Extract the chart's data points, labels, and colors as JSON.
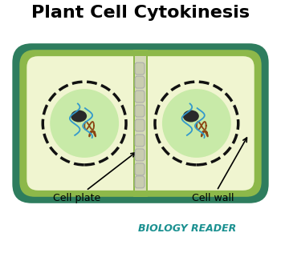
{
  "title": "Plant Cell Cytokinesis",
  "title_fontsize": 16,
  "title_fontweight": "bold",
  "bg_color": "#ffffff",
  "outer_cell_color": "#2e7d5e",
  "inner_cell_color": "#8db84a",
  "cytoplasm_color": "#f0f5d0",
  "nucleus_inner_color": "#c8eaa8",
  "nucleolus_color": "#2a2a2a",
  "cell_plate_bg": "#d4d9b8",
  "cell_plate_vesicle_color": "#c8ccb0",
  "dashed_circle_color": "#111111",
  "footer_text": "BIOLOGY READER",
  "footer_color": "#1a9090",
  "label_cell_plate": "Cell plate",
  "label_cell_wall": "Cell wall",
  "figsize": [
    3.5,
    3.16
  ],
  "dpi": 100
}
